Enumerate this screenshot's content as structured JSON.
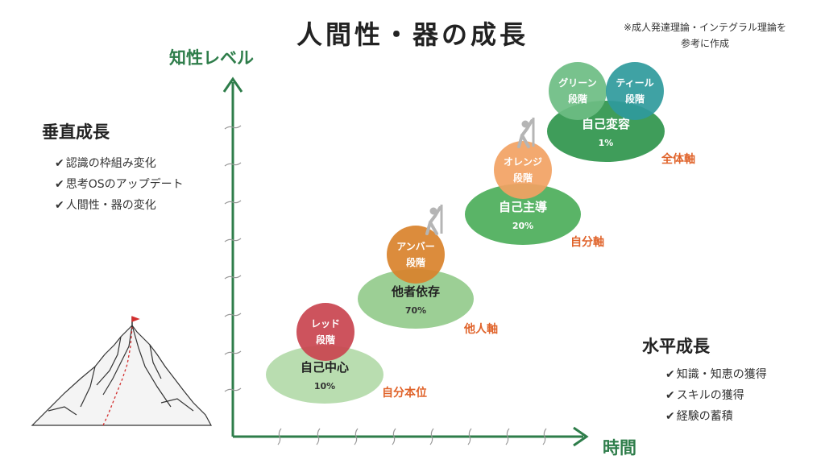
{
  "title": "人間性・器の成長",
  "note": [
    "※成人発達理論・インテグラル理論を",
    "参考に作成"
  ],
  "axes": {
    "y_label": "知性レベル",
    "x_label": "時間"
  },
  "vertical_growth": {
    "heading": "垂直成長",
    "items": [
      "認識の枠組み変化",
      "思考OSのアップデート",
      "人間性・器の変化"
    ]
  },
  "horizontal_growth": {
    "heading": "水平成長",
    "items": [
      "知識・知恵の獲得",
      "スキルの獲得",
      "経験の蓄積"
    ]
  },
  "check_mark": "✔",
  "stages": [
    {
      "name": "自己中心",
      "percent": "10%",
      "axis_label": "自分本位",
      "badge": [
        "レッド",
        "段階"
      ],
      "badge_color": "#c9444f",
      "ellipse_color": "#b9ddb0"
    },
    {
      "name": "他者依存",
      "percent": "70%",
      "axis_label": "他人軸",
      "badge": [
        "アンバー",
        "段階"
      ],
      "badge_color": "#d9822b",
      "ellipse_color": "#9ccf95"
    },
    {
      "name": "自己主導",
      "percent": "20%",
      "axis_label": "自分軸",
      "badge": [
        "オレンジ",
        "段階"
      ],
      "badge_color": "#f2a263",
      "ellipse_color": "#5ab467"
    },
    {
      "name": "自己変容",
      "percent": "1%",
      "axis_label": "全体軸",
      "badge": [
        "グリーン",
        "段階"
      ],
      "badge_color": "#6dbd83",
      "ellipse_color": "#3f9d5a",
      "badge2": [
        "ティール",
        "段階"
      ],
      "badge2_color": "#2f9a9c"
    }
  ],
  "colors": {
    "axis": "#2e7d4a",
    "axis_label_accent": "#e0632a",
    "tick": "#999999"
  },
  "icons": {
    "mountain": "mountain-flag-icon",
    "climber": "climber-icon"
  }
}
